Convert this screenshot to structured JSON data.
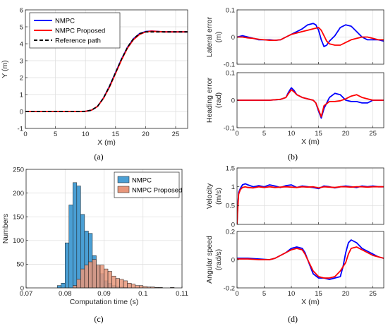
{
  "panel_labels": {
    "a": "(a)",
    "b": "(b)",
    "c": "(c)",
    "d": "(d)"
  },
  "colors": {
    "nmpc": "#0000ff",
    "proposed": "#ff0000",
    "reference": "#000000",
    "hist_nmpc": "#4a9fd4",
    "hist_proposed": "#e8967a"
  },
  "chart_data": [
    {
      "id": "a",
      "type": "line",
      "xlabel": "X (m)",
      "ylabel": "Y (m)",
      "xlim": [
        0,
        27
      ],
      "ylim": [
        -1,
        6
      ],
      "xticks": [
        0,
        5,
        10,
        15,
        20,
        25
      ],
      "yticks": [
        -1,
        0,
        1,
        2,
        3,
        4,
        5,
        6
      ],
      "grid": true,
      "legend": "top-left",
      "series": [
        {
          "name": "NMPC",
          "x": [
            0,
            5,
            9,
            10,
            11,
            12,
            13,
            14,
            15,
            16,
            17,
            18,
            19,
            20,
            21,
            22,
            23,
            25,
            27
          ],
          "y": [
            0,
            0,
            0,
            0.01,
            0.08,
            0.3,
            0.8,
            1.5,
            2.3,
            3.1,
            3.8,
            4.3,
            4.6,
            4.72,
            4.75,
            4.73,
            4.7,
            4.7,
            4.7
          ]
        },
        {
          "name": "NMPC Proposed",
          "x": [
            0,
            5,
            9,
            10,
            11,
            12,
            13,
            14,
            15,
            16,
            17,
            18,
            19,
            20,
            21,
            22,
            23,
            25,
            27
          ],
          "y": [
            0,
            0,
            0,
            0.01,
            0.08,
            0.3,
            0.78,
            1.45,
            2.25,
            3.05,
            3.75,
            4.25,
            4.55,
            4.7,
            4.74,
            4.72,
            4.7,
            4.7,
            4.7
          ]
        },
        {
          "name": "Reference path",
          "x": [
            0,
            5,
            9,
            10,
            11,
            12,
            13,
            14,
            15,
            16,
            17,
            18,
            19,
            20,
            21,
            22,
            23,
            25,
            27
          ],
          "y": [
            0,
            0,
            0,
            0.01,
            0.08,
            0.3,
            0.8,
            1.5,
            2.3,
            3.1,
            3.8,
            4.3,
            4.6,
            4.7,
            4.7,
            4.7,
            4.7,
            4.7,
            4.7
          ]
        }
      ]
    },
    {
      "id": "b1",
      "type": "line",
      "ylabel_lines": [
        "Lateral error",
        "(m)"
      ],
      "xlim": [
        0,
        27
      ],
      "ylim": [
        -0.1,
        0.1
      ],
      "xticks": [
        0,
        5,
        10,
        15,
        20,
        25
      ],
      "yticks": [
        -0.1,
        0,
        0.1
      ],
      "grid": true,
      "series": [
        {
          "name": "NMPC",
          "x": [
            0,
            1,
            2,
            3,
            4,
            5,
            6,
            7,
            8,
            9,
            10,
            10.5,
            11,
            12,
            13,
            14,
            14.5,
            15,
            15.5,
            16,
            16.5,
            17,
            18,
            19,
            20,
            21,
            22,
            23,
            24,
            25,
            26,
            27
          ],
          "y": [
            0,
            0.005,
            0,
            -0.005,
            -0.01,
            -0.01,
            -0.01,
            -0.012,
            -0.01,
            0,
            0.01,
            0.015,
            0.02,
            0.03,
            0.045,
            0.05,
            0.045,
            0.025,
            -0.01,
            -0.035,
            -0.03,
            -0.015,
            0.005,
            0.035,
            0.045,
            0.04,
            0.02,
            0,
            -0.01,
            -0.01,
            -0.01,
            -0.015
          ]
        },
        {
          "name": "NMPC Proposed",
          "x": [
            0,
            1,
            2,
            3,
            4,
            5,
            6,
            7,
            8,
            9,
            10,
            11,
            12,
            13,
            14,
            15,
            15.5,
            16,
            16.5,
            17,
            18,
            19,
            20,
            21,
            22,
            23,
            24,
            25,
            26,
            27
          ],
          "y": [
            0,
            0,
            -0.003,
            -0.005,
            -0.008,
            -0.01,
            -0.012,
            -0.012,
            -0.01,
            0,
            0.01,
            0.015,
            0.02,
            0.025,
            0.03,
            0.035,
            0.025,
            0.005,
            -0.015,
            -0.025,
            -0.03,
            -0.03,
            -0.02,
            -0.01,
            -0.005,
            0,
            0,
            -0.005,
            -0.01,
            -0.01
          ]
        }
      ]
    },
    {
      "id": "b2",
      "type": "line",
      "xlabel": "X (m)",
      "ylabel_lines": [
        "Heading error",
        "(rad)"
      ],
      "xlim": [
        0,
        27
      ],
      "ylim": [
        -0.1,
        0.1
      ],
      "xticks": [
        0,
        5,
        10,
        15,
        20,
        25
      ],
      "yticks": [
        -0.1,
        0,
        0.1
      ],
      "grid": true,
      "series": [
        {
          "name": "NMPC",
          "x": [
            0,
            2,
            4,
            6,
            8,
            9,
            9.5,
            10,
            10.5,
            11,
            12,
            13,
            14,
            14.5,
            15,
            15.5,
            16,
            17,
            18,
            19,
            20,
            21,
            22,
            23,
            24,
            25,
            26,
            27
          ],
          "y": [
            0,
            0,
            0,
            0,
            0.003,
            0.01,
            0.03,
            0.045,
            0.035,
            0.02,
            0.01,
            0.005,
            0,
            -0.01,
            -0.04,
            -0.065,
            -0.03,
            0.01,
            0.025,
            0.02,
            0,
            -0.005,
            -0.005,
            -0.01,
            -0.01,
            0,
            0,
            0
          ]
        },
        {
          "name": "NMPC Proposed",
          "x": [
            0,
            2,
            4,
            6,
            8,
            9,
            9.5,
            10,
            10.5,
            11,
            12,
            13,
            14,
            14.5,
            15,
            15.5,
            16,
            17,
            18,
            19,
            20,
            21,
            22,
            23,
            24,
            25,
            26,
            27
          ],
          "y": [
            0,
            0,
            0,
            0,
            0.003,
            0.01,
            0.025,
            0.038,
            0.03,
            0.02,
            0.01,
            0.005,
            0,
            -0.01,
            -0.035,
            -0.06,
            -0.02,
            -0.005,
            -0.005,
            -0.002,
            0.005,
            0.015,
            0.02,
            0.01,
            0.005,
            0,
            0,
            0
          ]
        }
      ]
    },
    {
      "id": "c",
      "type": "bar",
      "xlabel": "Computation time (s)",
      "ylabel": "Numbers",
      "xlim": [
        0.07,
        0.11
      ],
      "ylim": [
        0,
        250
      ],
      "xticks": [
        0.07,
        0.08,
        0.09,
        0.1,
        0.11
      ],
      "yticks": [
        0,
        50,
        100,
        150,
        200,
        250
      ],
      "grid": true,
      "legend": "top-right",
      "bin_edges": [
        0.078,
        0.079,
        0.08,
        0.081,
        0.082,
        0.083,
        0.084,
        0.085,
        0.086,
        0.087,
        0.088,
        0.089,
        0.09,
        0.091,
        0.092,
        0.093,
        0.094,
        0.095,
        0.096,
        0.097,
        0.098,
        0.099,
        0.1,
        0.101,
        0.102,
        0.103,
        0.104,
        0.105,
        0.106,
        0.107,
        0.108
      ],
      "series": [
        {
          "name": "NMPC",
          "values": [
            5,
            10,
            95,
            175,
            222,
            215,
            155,
            120,
            115,
            68,
            48,
            30,
            15,
            10,
            5,
            3,
            2,
            1,
            0,
            0,
            0,
            0,
            0,
            0,
            0,
            0,
            0,
            0,
            0,
            0
          ]
        },
        {
          "name": "NMPC Proposed",
          "values": [
            0,
            0,
            0,
            0,
            5,
            18,
            40,
            48,
            55,
            60,
            48,
            48,
            40,
            35,
            25,
            20,
            18,
            15,
            10,
            8,
            5,
            5,
            3,
            2,
            2,
            1,
            1,
            0,
            0,
            1
          ]
        }
      ]
    },
    {
      "id": "d1",
      "type": "line",
      "ylabel_lines": [
        "Velocity",
        "(m/s)"
      ],
      "xlim": [
        0,
        27
      ],
      "ylim": [
        0,
        1.5
      ],
      "xticks": [
        0,
        5,
        10,
        15,
        20,
        25
      ],
      "yticks": [
        0,
        0.5,
        1,
        1.5
      ],
      "grid": true,
      "series": [
        {
          "name": "NMPC",
          "x": [
            0,
            0.1,
            0.3,
            0.6,
            1,
            1.5,
            2,
            3,
            4,
            5,
            6,
            7,
            8,
            9,
            10,
            11,
            12,
            13,
            14,
            15,
            16,
            17,
            18,
            19,
            20,
            21,
            22,
            23,
            24,
            25,
            26,
            27
          ],
          "y": [
            0,
            0.4,
            0.85,
            0.95,
            1.05,
            1.08,
            1.05,
            1.0,
            1.03,
            1.0,
            1.05,
            1.02,
            0.98,
            1.03,
            1.05,
            0.98,
            1.02,
            1.0,
            0.98,
            0.95,
            1.02,
            1.0,
            0.97,
            1.0,
            1.02,
            1.0,
            0.98,
            1.02,
            1.0,
            1.02,
            1.0,
            1.0
          ]
        },
        {
          "name": "NMPC Proposed",
          "x": [
            0,
            0.1,
            0.3,
            0.6,
            1,
            1.5,
            2,
            3,
            4,
            5,
            6,
            7,
            8,
            9,
            10,
            11,
            12,
            13,
            14,
            15,
            16,
            17,
            18,
            19,
            20,
            21,
            22,
            23,
            24,
            25,
            26,
            27
          ],
          "y": [
            0,
            0.35,
            0.8,
            0.92,
            0.98,
            1.0,
            0.98,
            0.97,
            1.0,
            0.98,
            1.0,
            0.98,
            0.99,
            1.0,
            0.99,
            0.98,
            1.0,
            0.99,
            1.0,
            0.97,
            1.0,
            0.99,
            0.98,
            1.0,
            1.0,
            0.99,
            1.0,
            1.0,
            0.99,
            1.0,
            1.0,
            1.0
          ]
        }
      ]
    },
    {
      "id": "d2",
      "type": "line",
      "xlabel": "X (m)",
      "ylabel_lines": [
        "Angular speed",
        "(rad/s)"
      ],
      "xlim": [
        0,
        27
      ],
      "ylim": [
        -0.2,
        0.2
      ],
      "xticks": [
        0,
        5,
        10,
        15,
        20,
        25
      ],
      "yticks": [
        -0.2,
        0,
        0.2
      ],
      "grid": true,
      "series": [
        {
          "name": "NMPC",
          "x": [
            0,
            2,
            4,
            6,
            7,
            8,
            9,
            10,
            11,
            12,
            12.5,
            13,
            14,
            15,
            16,
            17,
            18,
            19,
            19.5,
            20,
            20.5,
            21,
            22,
            23,
            24,
            25,
            26,
            27
          ],
          "y": [
            0.01,
            0.01,
            0.005,
            0,
            0.01,
            0.03,
            0.05,
            0.08,
            0.09,
            0.08,
            0.05,
            0,
            -0.1,
            -0.13,
            -0.13,
            -0.14,
            -0.13,
            -0.12,
            -0.05,
            0.05,
            0.12,
            0.14,
            0.12,
            0.08,
            0.06,
            0.04,
            0.02,
            0.01
          ]
        },
        {
          "name": "NMPC Proposed",
          "x": [
            0,
            2,
            4,
            6,
            7,
            8,
            9,
            10,
            11,
            12,
            12.5,
            13,
            14,
            15,
            16,
            17,
            18,
            19,
            20,
            20.5,
            21,
            22,
            23,
            24,
            25,
            26,
            27
          ],
          "y": [
            0.005,
            0.005,
            0,
            0,
            0.01,
            0.03,
            0.05,
            0.07,
            0.08,
            0.07,
            0.04,
            0,
            -0.08,
            -0.12,
            -0.13,
            -0.13,
            -0.12,
            -0.08,
            -0.02,
            0.04,
            0.08,
            0.09,
            0.07,
            0.05,
            0.03,
            0.02,
            0.01
          ]
        }
      ]
    }
  ]
}
